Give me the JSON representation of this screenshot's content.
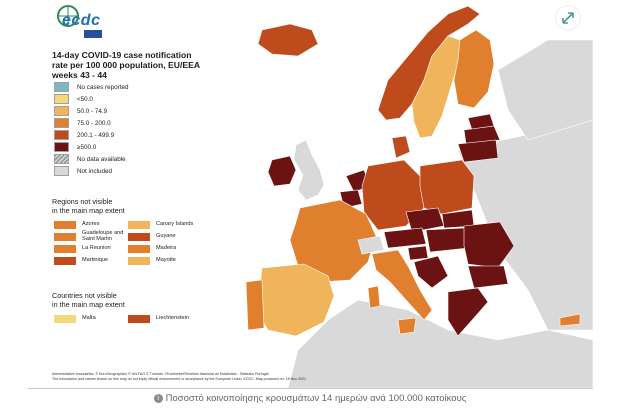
{
  "logo": {
    "text": "ecdc"
  },
  "title": {
    "line1": "14-day COVID-19 case notification",
    "line2": "rate per 100 000 population, EU/EEA",
    "line3": "weeks 43 - 44"
  },
  "legend": {
    "items": [
      {
        "label": "No cases reported",
        "color": "#7bb9c3"
      },
      {
        "label": "<50.0",
        "color": "#f3d97c"
      },
      {
        "label": "50.0 - 74.9",
        "color": "#f0b45a"
      },
      {
        "label": "75.0 - 200.0",
        "color": "#e07f2e"
      },
      {
        "label": "200.1 - 499.9",
        "color": "#bf4a1c"
      },
      {
        "label": "≥500.0",
        "color": "#6b1212"
      },
      {
        "label": "No data available",
        "color": "#9a9a9a"
      },
      {
        "label": "Not included",
        "color": "#d9d9d9"
      }
    ]
  },
  "regions": {
    "title_line1": "Regions not visible",
    "title_line2": "in the main map extent",
    "items": [
      {
        "label": "Azores",
        "color": "#e07f2e"
      },
      {
        "label": "Canary Islands",
        "color": "#f0b45a"
      },
      {
        "label": "Guadeloupe and Saint Martin",
        "color": "#e07f2e"
      },
      {
        "label": "Guyane",
        "color": "#bf4a1c"
      },
      {
        "label": "La Reunion",
        "color": "#e07f2e"
      },
      {
        "label": "Madeira",
        "color": "#e07f2e"
      },
      {
        "label": "Martinique",
        "color": "#bf4a1c"
      },
      {
        "label": "Mayotte",
        "color": "#f0b45a"
      }
    ]
  },
  "countries_not_visible": {
    "title_line1": "Countries not visible",
    "title_line2": "in the main map extent",
    "items": [
      {
        "label": "Malta",
        "color": "#f3d97c"
      },
      {
        "label": "Liechtenstein",
        "color": "#bf4a1c"
      }
    ]
  },
  "footer": {
    "line1": "Administrative boundaries: © EuroGeographics © UN-FAO © Turkstat. ©Kartverket©Instituto Nacional de Estatística - Statistics Portugal.",
    "line2": "The boundaries and names shown on this map do not imply official endorsement or acceptance by the European Union. ECDC. Map produced on: 18 Nov 2021"
  },
  "caption": "Ποσοστό κοινοποίησης κρουσμάτων 14 ημερών ανά 100.000 κατοίκους",
  "icons": {
    "expand": "expand-arrows-icon",
    "info": "info-icon"
  }
}
